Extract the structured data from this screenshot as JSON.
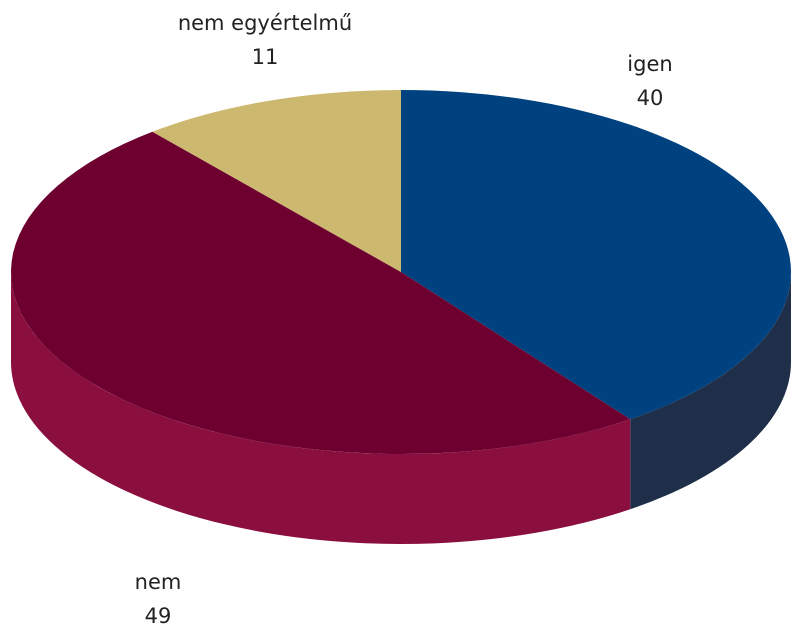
{
  "chart_data": {
    "type": "pie3d",
    "categories": [
      "igen",
      "nem",
      "nem egyértelmű"
    ],
    "values": [
      40,
      49,
      11
    ],
    "colors": [
      "#00427f",
      "#6e0030",
      "#cdb870"
    ],
    "side_colors": [
      "#1f2f4a",
      "#8a0e3e",
      "#a8955a"
    ]
  }
}
